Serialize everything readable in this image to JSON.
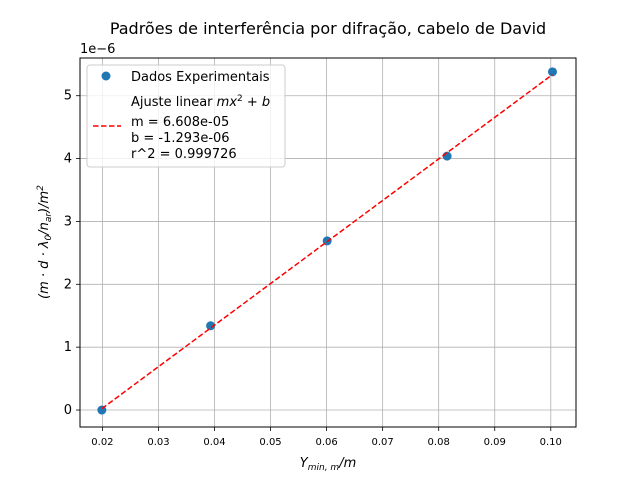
{
  "chart_data": {
    "type": "scatter",
    "title": "Padrões de interferência por difração, cabelo de David",
    "xlabel": "Y",
    "xlabel_sub": "min, m",
    "xlabel_unit": "/m",
    "ylabel": "(m · d · λ",
    "ylabel_sub0": "0",
    "ylabel_mid": "/n",
    "ylabel_sub1": "ar",
    "ylabel_unit": ")/m",
    "ylabel_sup": "2",
    "y_offset_text": "1e−6",
    "xlim": [
      0.016,
      0.1045
    ],
    "ylim": [
      -0.27,
      5.6
    ],
    "y_unit_scale": 1e-06,
    "xticks": [
      0.02,
      0.03,
      0.04,
      0.05,
      0.06,
      0.07,
      0.08,
      0.09,
      0.1
    ],
    "xtick_labels": [
      "0.02",
      "0.03",
      "0.04",
      "0.05",
      "0.06",
      "0.07",
      "0.08",
      "0.09",
      "0.10"
    ],
    "yticks": [
      0,
      1,
      2,
      3,
      4,
      5
    ],
    "ytick_labels": [
      "0",
      "1",
      "2",
      "3",
      "4",
      "5"
    ],
    "grid": true,
    "legend_position": "top-left",
    "series": [
      {
        "name": "Dados Experimentais",
        "kind": "scatter",
        "color": "#1f77b4",
        "x": [
          0.0199,
          0.0393,
          0.0601,
          0.0815,
          0.1003
        ],
        "y": [
          0.0,
          1.34,
          2.69,
          4.04,
          5.38
        ]
      },
      {
        "name": "Ajuste linear ",
        "name_formula": "mx",
        "name_sup": "2",
        "name_tail": " + b",
        "kind": "line",
        "color": "#ff0000",
        "dash": "dashed",
        "x": [
          0.0199,
          0.1003
        ],
        "y": [
          0.022,
          5.336
        ]
      }
    ],
    "fit_params": [
      "m = 6.608e-05",
      "b = -1.293e-06",
      "r^2 = 0.999726"
    ]
  }
}
